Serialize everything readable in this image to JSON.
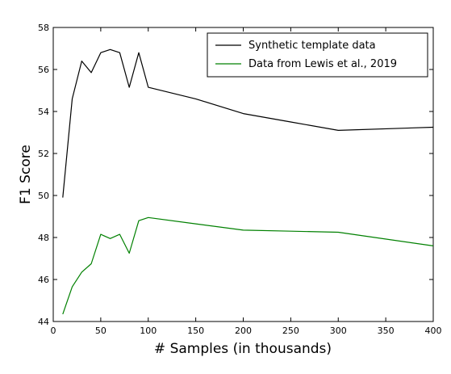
{
  "chart_data": {
    "type": "line",
    "title": "",
    "xlabel": "# Samples (in thousands)",
    "ylabel": "F1 Score",
    "xlim": [
      0,
      400
    ],
    "ylim": [
      44,
      58
    ],
    "xticks": [
      "0",
      "50",
      "100",
      "150",
      "200",
      "250",
      "300",
      "350",
      "400"
    ],
    "yticks": [
      "44",
      "46",
      "48",
      "50",
      "52",
      "54",
      "56",
      "58"
    ],
    "grid": false,
    "legend_position": "top-right",
    "series": [
      {
        "name": "Synthetic template data",
        "color": "#000000",
        "x": [
          10,
          20,
          30,
          40,
          50,
          60,
          70,
          80,
          90,
          100,
          150,
          200,
          250,
          300,
          400
        ],
        "y": [
          49.9,
          54.6,
          56.4,
          55.85,
          56.8,
          56.95,
          56.8,
          55.15,
          56.8,
          55.15,
          54.6,
          53.9,
          53.5,
          53.1,
          53.25
        ]
      },
      {
        "name": "Data from Lewis et al., 2019",
        "color": "#008000",
        "x": [
          10,
          20,
          30,
          40,
          50,
          60,
          70,
          80,
          90,
          100,
          150,
          200,
          250,
          300,
          400
        ],
        "y": [
          44.35,
          45.65,
          46.35,
          46.75,
          48.15,
          47.95,
          48.15,
          47.25,
          48.8,
          48.95,
          48.65,
          48.35,
          48.3,
          48.25,
          47.6
        ]
      }
    ]
  }
}
